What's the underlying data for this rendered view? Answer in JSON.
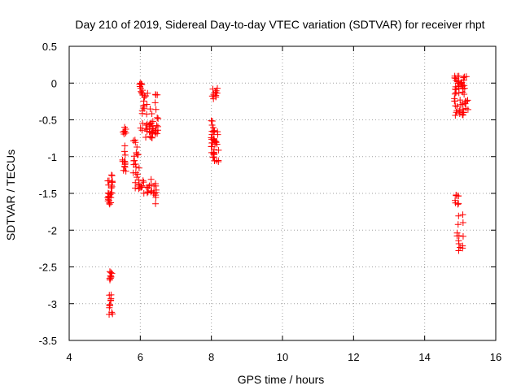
{
  "chart_data": {
    "type": "scatter",
    "title": "Day 210 of 2019, Sidereal Day-to-day VTEC variation (SDTVAR) for receiver rhpt",
    "xlabel": "GPS time / hours",
    "ylabel": "SDTVAR / TECUs",
    "xlim": [
      4,
      16
    ],
    "ylim": [
      -3.5,
      0.5
    ],
    "xticks": [
      4,
      6,
      8,
      10,
      12,
      14,
      16
    ],
    "yticks": [
      0.5,
      0,
      -0.5,
      -1,
      -1.5,
      -2,
      -2.5,
      -3,
      -3.5
    ],
    "xtick_labels": [
      "4",
      "6",
      "8",
      "10",
      "12",
      "14",
      "16"
    ],
    "ytick_labels": [
      "0.5",
      "0",
      "-0.5",
      "-1",
      "-1.5",
      "-2",
      "-2.5",
      "-3",
      "-3.5"
    ],
    "grid": true,
    "marker": "+",
    "marker_color": "#ff0000",
    "series": [
      {
        "name": "SDTVAR",
        "clusters": [
          {
            "x": [
              5.08,
              5.22
            ],
            "y": [
              -1.65,
              -1.25
            ],
            "n": 26
          },
          {
            "x": [
              5.1,
              5.22
            ],
            "y": [
              -2.7,
              -2.55
            ],
            "n": 10
          },
          {
            "x": [
              5.12,
              5.22
            ],
            "y": [
              -3.15,
              -2.85
            ],
            "n": 12
          },
          {
            "x": [
              5.5,
              5.6
            ],
            "y": [
              -1.2,
              -0.6
            ],
            "n": 20
          },
          {
            "x": [
              5.8,
              5.97
            ],
            "y": [
              -1.45,
              -0.75
            ],
            "n": 20
          },
          {
            "x": [
              5.97,
              6.08
            ],
            "y": [
              -0.2,
              0.0
            ],
            "n": 10
          },
          {
            "x": [
              6.0,
              6.5
            ],
            "y": [
              -0.75,
              -0.55
            ],
            "n": 28
          },
          {
            "x": [
              6.05,
              6.5
            ],
            "y": [
              -0.6,
              -0.12
            ],
            "n": 28
          },
          {
            "x": [
              5.95,
              6.45
            ],
            "y": [
              -1.5,
              -1.3
            ],
            "n": 28
          },
          {
            "x": [
              6.4,
              6.45
            ],
            "y": [
              -1.65,
              -1.45
            ],
            "n": 5
          },
          {
            "x": [
              7.98,
              8.06
            ],
            "y": [
              -0.95,
              -0.5
            ],
            "n": 12
          },
          {
            "x": [
              8.0,
              8.22
            ],
            "y": [
              -1.08,
              -0.9
            ],
            "n": 14
          },
          {
            "x": [
              8.05,
              8.22
            ],
            "y": [
              -0.85,
              -0.6
            ],
            "n": 14
          },
          {
            "x": [
              8.02,
              8.18
            ],
            "y": [
              -0.22,
              -0.07
            ],
            "n": 10
          },
          {
            "x": [
              14.82,
              15.22
            ],
            "y": [
              -0.45,
              0.1
            ],
            "n": 60
          },
          {
            "x": [
              14.85,
              14.95
            ],
            "y": [
              -1.65,
              -1.52
            ],
            "n": 8
          },
          {
            "x": [
              14.9,
              15.1
            ],
            "y": [
              -2.3,
              -1.75
            ],
            "n": 14
          }
        ]
      }
    ]
  }
}
